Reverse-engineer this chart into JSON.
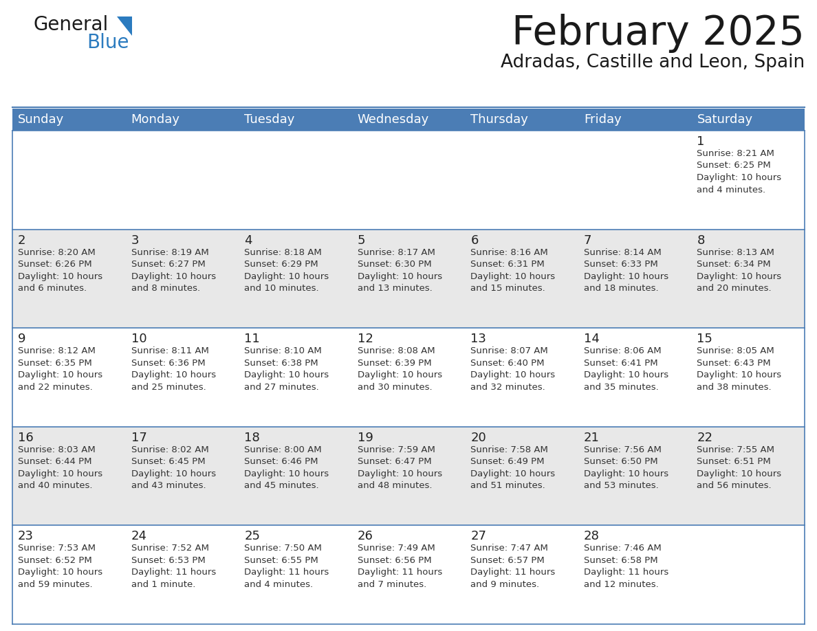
{
  "title": "February 2025",
  "subtitle": "Adradas, Castille and Leon, Spain",
  "header_color": "#4b7db5",
  "header_text_color": "#ffffff",
  "header_font_size": 13,
  "title_font_size": 42,
  "subtitle_font_size": 19,
  "day_number_font_size": 13,
  "cell_text_font_size": 9.5,
  "days_of_week": [
    "Sunday",
    "Monday",
    "Tuesday",
    "Wednesday",
    "Thursday",
    "Friday",
    "Saturday"
  ],
  "background_color": "#ffffff",
  "cell_bg_even": "#e8e8e8",
  "cell_bg_white": "#ffffff",
  "line_color": "#4b7db5",
  "text_color": "#333333",
  "day_num_color": "#222222",
  "logo_general_color": "#1a1a1a",
  "logo_blue_color": "#2b7bbf",
  "calendar_data": [
    [
      null,
      null,
      null,
      null,
      null,
      null,
      1
    ],
    [
      2,
      3,
      4,
      5,
      6,
      7,
      8
    ],
    [
      9,
      10,
      11,
      12,
      13,
      14,
      15
    ],
    [
      16,
      17,
      18,
      19,
      20,
      21,
      22
    ],
    [
      23,
      24,
      25,
      26,
      27,
      28,
      null
    ]
  ],
  "sunrise_data": {
    "1": "Sunrise: 8:21 AM\nSunset: 6:25 PM\nDaylight: 10 hours\nand 4 minutes.",
    "2": "Sunrise: 8:20 AM\nSunset: 6:26 PM\nDaylight: 10 hours\nand 6 minutes.",
    "3": "Sunrise: 8:19 AM\nSunset: 6:27 PM\nDaylight: 10 hours\nand 8 minutes.",
    "4": "Sunrise: 8:18 AM\nSunset: 6:29 PM\nDaylight: 10 hours\nand 10 minutes.",
    "5": "Sunrise: 8:17 AM\nSunset: 6:30 PM\nDaylight: 10 hours\nand 13 minutes.",
    "6": "Sunrise: 8:16 AM\nSunset: 6:31 PM\nDaylight: 10 hours\nand 15 minutes.",
    "7": "Sunrise: 8:14 AM\nSunset: 6:33 PM\nDaylight: 10 hours\nand 18 minutes.",
    "8": "Sunrise: 8:13 AM\nSunset: 6:34 PM\nDaylight: 10 hours\nand 20 minutes.",
    "9": "Sunrise: 8:12 AM\nSunset: 6:35 PM\nDaylight: 10 hours\nand 22 minutes.",
    "10": "Sunrise: 8:11 AM\nSunset: 6:36 PM\nDaylight: 10 hours\nand 25 minutes.",
    "11": "Sunrise: 8:10 AM\nSunset: 6:38 PM\nDaylight: 10 hours\nand 27 minutes.",
    "12": "Sunrise: 8:08 AM\nSunset: 6:39 PM\nDaylight: 10 hours\nand 30 minutes.",
    "13": "Sunrise: 8:07 AM\nSunset: 6:40 PM\nDaylight: 10 hours\nand 32 minutes.",
    "14": "Sunrise: 8:06 AM\nSunset: 6:41 PM\nDaylight: 10 hours\nand 35 minutes.",
    "15": "Sunrise: 8:05 AM\nSunset: 6:43 PM\nDaylight: 10 hours\nand 38 minutes.",
    "16": "Sunrise: 8:03 AM\nSunset: 6:44 PM\nDaylight: 10 hours\nand 40 minutes.",
    "17": "Sunrise: 8:02 AM\nSunset: 6:45 PM\nDaylight: 10 hours\nand 43 minutes.",
    "18": "Sunrise: 8:00 AM\nSunset: 6:46 PM\nDaylight: 10 hours\nand 45 minutes.",
    "19": "Sunrise: 7:59 AM\nSunset: 6:47 PM\nDaylight: 10 hours\nand 48 minutes.",
    "20": "Sunrise: 7:58 AM\nSunset: 6:49 PM\nDaylight: 10 hours\nand 51 minutes.",
    "21": "Sunrise: 7:56 AM\nSunset: 6:50 PM\nDaylight: 10 hours\nand 53 minutes.",
    "22": "Sunrise: 7:55 AM\nSunset: 6:51 PM\nDaylight: 10 hours\nand 56 minutes.",
    "23": "Sunrise: 7:53 AM\nSunset: 6:52 PM\nDaylight: 10 hours\nand 59 minutes.",
    "24": "Sunrise: 7:52 AM\nSunset: 6:53 PM\nDaylight: 11 hours\nand 1 minute.",
    "25": "Sunrise: 7:50 AM\nSunset: 6:55 PM\nDaylight: 11 hours\nand 4 minutes.",
    "26": "Sunrise: 7:49 AM\nSunset: 6:56 PM\nDaylight: 11 hours\nand 7 minutes.",
    "27": "Sunrise: 7:47 AM\nSunset: 6:57 PM\nDaylight: 11 hours\nand 9 minutes.",
    "28": "Sunrise: 7:46 AM\nSunset: 6:58 PM\nDaylight: 11 hours\nand 12 minutes."
  }
}
